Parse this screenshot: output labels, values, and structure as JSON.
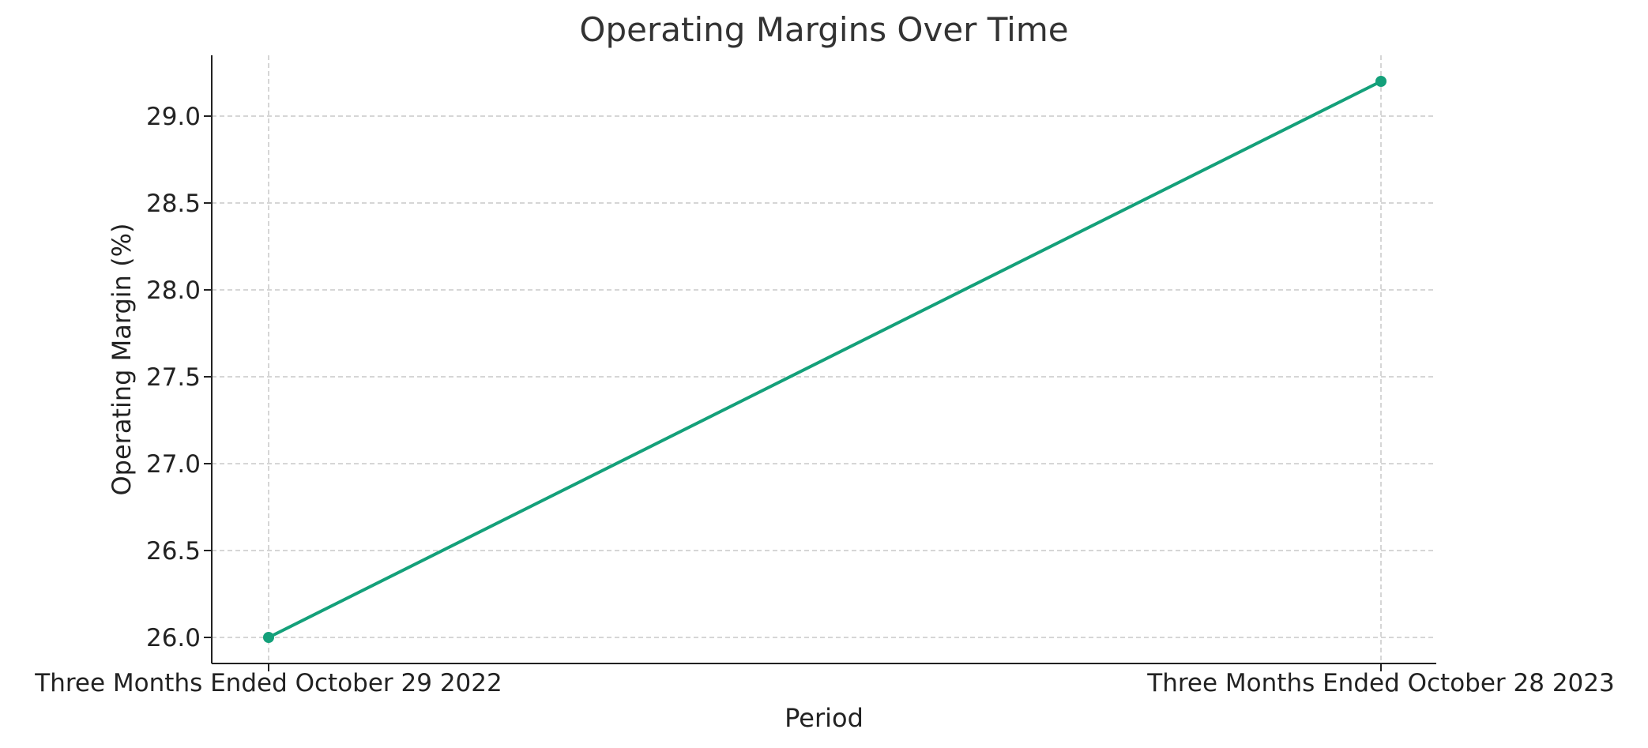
{
  "chart_data": {
    "type": "line",
    "title": "Operating Margins Over Time",
    "xlabel": "Period",
    "ylabel": "Operating Margin (%)",
    "categories": [
      "Three Months Ended October 29 2022",
      "Three Months Ended October 28 2023"
    ],
    "values": [
      26.0,
      29.2
    ],
    "ylim": [
      25.85,
      29.35
    ],
    "yticks": [
      "26.0",
      "26.5",
      "27.0",
      "27.5",
      "28.0",
      "28.5",
      "29.0"
    ],
    "grid": true,
    "line_color": "#14a07a",
    "marker": "circle"
  }
}
